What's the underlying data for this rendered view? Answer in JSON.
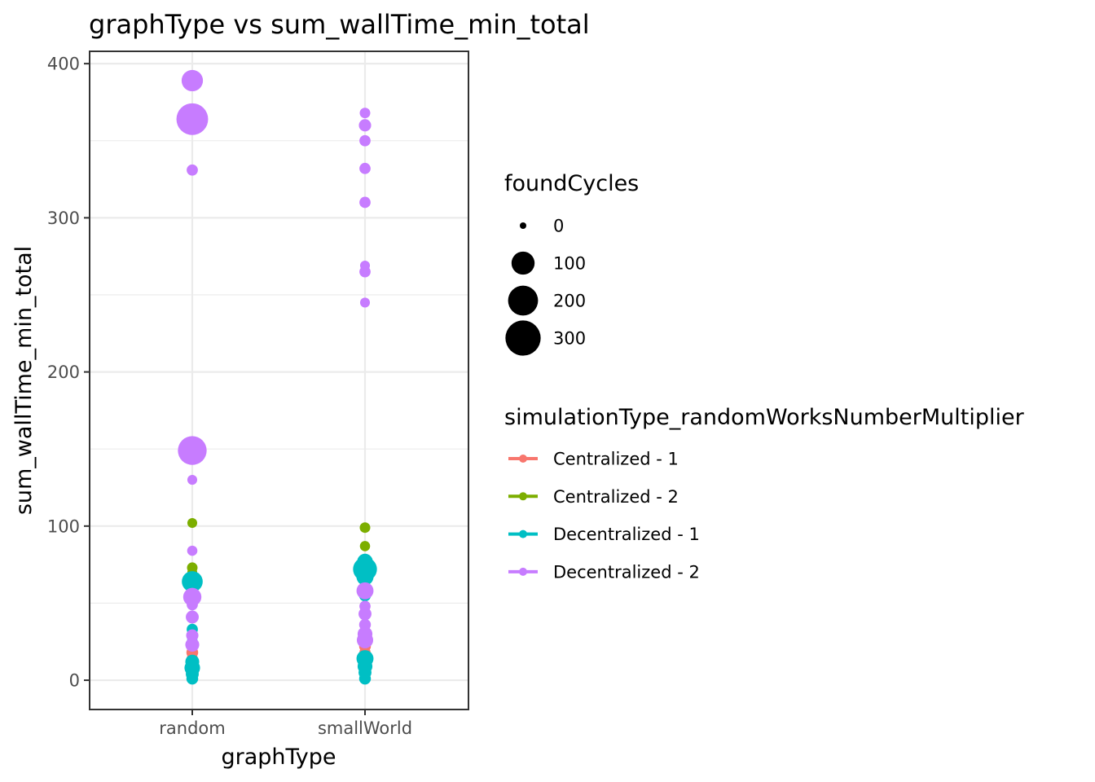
{
  "chart_data": {
    "type": "scatter",
    "title": "graphType  vs  sum_wallTime_min_total",
    "xlabel": "graphType",
    "ylabel": "sum_wallTime_min_total",
    "categories": [
      "random",
      "smallWorld"
    ],
    "ylim": [
      -19,
      408
    ],
    "yticks": [
      0,
      100,
      200,
      300,
      400
    ],
    "ytick_labels": [
      "0",
      "100",
      "200",
      "300",
      "400"
    ],
    "grid": true,
    "legend_position": "right",
    "size_legend": {
      "title": "foundCycles",
      "entries": [
        {
          "label": "0",
          "value": 0
        },
        {
          "label": "100",
          "value": 100
        },
        {
          "label": "200",
          "value": 200
        },
        {
          "label": "300",
          "value": 300
        }
      ]
    },
    "color_legend": {
      "title": "simulationType_randomWorksNumberMultiplier"
    },
    "series": [
      {
        "name": "Centralized - 1",
        "color": "#F8766D",
        "points": [
          {
            "x": "random",
            "y": 10,
            "size": 5
          },
          {
            "x": "random",
            "y": 14,
            "size": 8
          },
          {
            "x": "random",
            "y": 18,
            "size": 10
          },
          {
            "x": "random",
            "y": 21,
            "size": 6
          },
          {
            "x": "random",
            "y": 24,
            "size": 4
          },
          {
            "x": "smallWorld",
            "y": 18,
            "size": 8
          },
          {
            "x": "smallWorld",
            "y": 22,
            "size": 10
          },
          {
            "x": "smallWorld",
            "y": 26,
            "size": 6
          },
          {
            "x": "smallWorld",
            "y": 30,
            "size": 4
          }
        ]
      },
      {
        "name": "Centralized - 2",
        "color": "#7CAE00",
        "points": [
          {
            "x": "random",
            "y": 102,
            "size": 4
          },
          {
            "x": "random",
            "y": 73,
            "size": 6
          },
          {
            "x": "random",
            "y": 70,
            "size": 4
          },
          {
            "x": "random",
            "y": 62,
            "size": 5
          },
          {
            "x": "random",
            "y": 5,
            "size": 4
          },
          {
            "x": "smallWorld",
            "y": 99,
            "size": 6
          },
          {
            "x": "smallWorld",
            "y": 87,
            "size": 5
          },
          {
            "x": "smallWorld",
            "y": 69,
            "size": 6
          },
          {
            "x": "smallWorld",
            "y": 65,
            "size": 5
          },
          {
            "x": "smallWorld",
            "y": 62,
            "size": 4
          },
          {
            "x": "smallWorld",
            "y": 4,
            "size": 5
          }
        ]
      },
      {
        "name": "Decentralized - 1",
        "color": "#00BFC4",
        "points": [
          {
            "x": "random",
            "y": 64,
            "size": 75
          },
          {
            "x": "random",
            "y": 33,
            "size": 8
          },
          {
            "x": "random",
            "y": 26,
            "size": 5
          },
          {
            "x": "random",
            "y": 12,
            "size": 20
          },
          {
            "x": "random",
            "y": 8,
            "size": 30
          },
          {
            "x": "random",
            "y": 4,
            "size": 15
          },
          {
            "x": "random",
            "y": 1,
            "size": 10
          },
          {
            "x": "smallWorld",
            "y": 77,
            "size": 30
          },
          {
            "x": "smallWorld",
            "y": 72,
            "size": 110
          },
          {
            "x": "smallWorld",
            "y": 67,
            "size": 40
          },
          {
            "x": "smallWorld",
            "y": 55,
            "size": 10
          },
          {
            "x": "smallWorld",
            "y": 14,
            "size": 40
          },
          {
            "x": "smallWorld",
            "y": 9,
            "size": 25
          },
          {
            "x": "smallWorld",
            "y": 5,
            "size": 15
          },
          {
            "x": "smallWorld",
            "y": 1,
            "size": 10
          }
        ]
      },
      {
        "name": "Decentralized - 2",
        "color": "#C77CFF",
        "points": [
          {
            "x": "random",
            "y": 389,
            "size": 80
          },
          {
            "x": "random",
            "y": 364,
            "size": 230
          },
          {
            "x": "random",
            "y": 331,
            "size": 8
          },
          {
            "x": "random",
            "y": 149,
            "size": 180
          },
          {
            "x": "random",
            "y": 130,
            "size": 4
          },
          {
            "x": "random",
            "y": 84,
            "size": 5
          },
          {
            "x": "random",
            "y": 54,
            "size": 50
          },
          {
            "x": "random",
            "y": 49,
            "size": 8
          },
          {
            "x": "random",
            "y": 41,
            "size": 15
          },
          {
            "x": "random",
            "y": 29,
            "size": 12
          },
          {
            "x": "random",
            "y": 23,
            "size": 20
          },
          {
            "x": "smallWorld",
            "y": 368,
            "size": 6
          },
          {
            "x": "smallWorld",
            "y": 360,
            "size": 12
          },
          {
            "x": "smallWorld",
            "y": 350,
            "size": 8
          },
          {
            "x": "smallWorld",
            "y": 332,
            "size": 8
          },
          {
            "x": "smallWorld",
            "y": 310,
            "size": 8
          },
          {
            "x": "smallWorld",
            "y": 269,
            "size": 4
          },
          {
            "x": "smallWorld",
            "y": 265,
            "size": 8
          },
          {
            "x": "smallWorld",
            "y": 245,
            "size": 4
          },
          {
            "x": "smallWorld",
            "y": 58,
            "size": 40
          },
          {
            "x": "smallWorld",
            "y": 48,
            "size": 8
          },
          {
            "x": "smallWorld",
            "y": 43,
            "size": 15
          },
          {
            "x": "smallWorld",
            "y": 36,
            "size": 10
          },
          {
            "x": "smallWorld",
            "y": 30,
            "size": 25
          },
          {
            "x": "smallWorld",
            "y": 26,
            "size": 35
          }
        ]
      }
    ]
  }
}
